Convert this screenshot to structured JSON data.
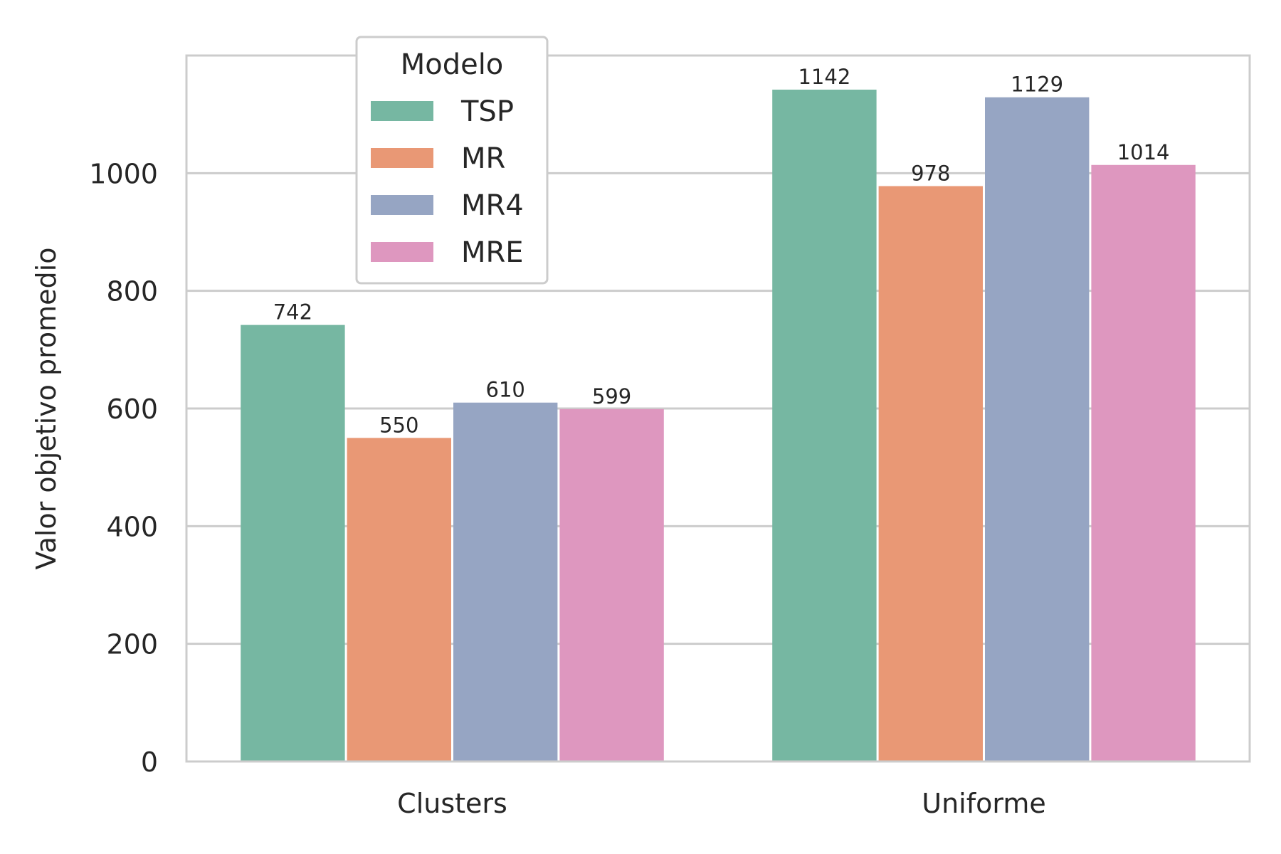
{
  "chart_data": {
    "type": "bar",
    "categories": [
      "Clusters",
      "Uniforme"
    ],
    "series": [
      {
        "name": "TSP",
        "values": [
          742,
          1142
        ],
        "color": "#76b7a2"
      },
      {
        "name": "MR",
        "values": [
          550,
          978
        ],
        "color": "#e99875"
      },
      {
        "name": "MR4",
        "values": [
          610,
          1129
        ],
        "color": "#96a5c3"
      },
      {
        "name": "MRE",
        "values": [
          599,
          1014
        ],
        "color": "#de97bf"
      }
    ],
    "data_labels": [
      [
        "742",
        "1142"
      ],
      [
        "550",
        "978"
      ],
      [
        "610",
        "1129"
      ],
      [
        "599",
        "1014"
      ]
    ],
    "ylabel": "Valor objetivo promedio",
    "xlabel": "",
    "ylim": [
      0,
      1200
    ],
    "yticks": [
      0,
      200,
      400,
      600,
      800,
      1000
    ],
    "ytick_labels": [
      "0",
      "200",
      "400",
      "600",
      "800",
      "1000"
    ],
    "grid": true,
    "legend": {
      "title": "Modelo",
      "placement": "top-left"
    }
  }
}
